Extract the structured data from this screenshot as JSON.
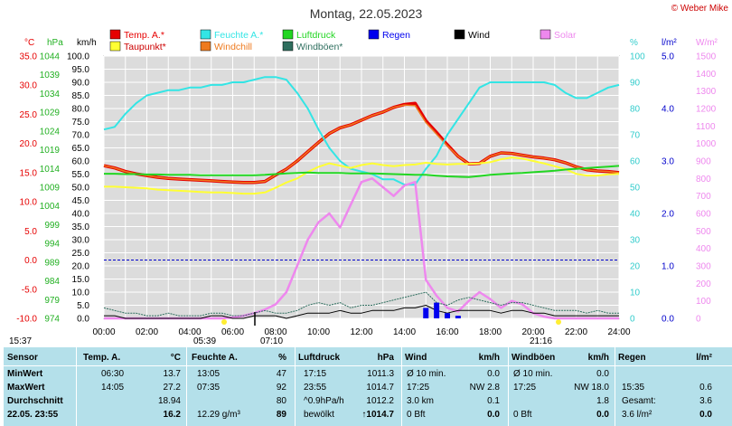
{
  "header": {
    "title": "Montag, 22.05.2023",
    "copyright": "© Weber Mike"
  },
  "legend": [
    {
      "label": "Temp. A.*",
      "color": "#e60000",
      "col": 0,
      "row": 0
    },
    {
      "label": "Feuchte A.*",
      "color": "#33e5e5",
      "col": 1,
      "row": 0
    },
    {
      "label": "Luftdruck",
      "color": "#22d622",
      "col": 2,
      "row": 0
    },
    {
      "label": "Regen",
      "color": "#0000ee",
      "col": 3,
      "row": 0
    },
    {
      "label": "Wind",
      "color": "#000000",
      "col": 4,
      "row": 0
    },
    {
      "label": "Solar",
      "color": "#ee88ee",
      "col": 5,
      "row": 0
    },
    {
      "label": "Taupunkt*",
      "color": "#ffff33",
      "col": 0,
      "row": 1
    },
    {
      "label": "Windchill",
      "color": "#ee7a1e",
      "col": 1,
      "row": 1
    },
    {
      "label": "Windböen*",
      "color": "#2e6e5e",
      "col": 2,
      "row": 1
    }
  ],
  "chart_data": {
    "type": "line",
    "x": [
      "00:00",
      "00:30",
      "01:00",
      "01:30",
      "02:00",
      "02:30",
      "03:00",
      "03:30",
      "04:00",
      "04:30",
      "05:00",
      "05:30",
      "06:00",
      "06:30",
      "07:00",
      "07:30",
      "08:00",
      "08:30",
      "09:00",
      "09:30",
      "10:00",
      "10:30",
      "11:00",
      "11:30",
      "12:00",
      "12:30",
      "13:00",
      "13:30",
      "14:00",
      "14:30",
      "15:00",
      "15:30",
      "16:00",
      "16:30",
      "17:00",
      "17:30",
      "18:00",
      "18:30",
      "19:00",
      "19:30",
      "20:00",
      "20:30",
      "21:00",
      "21:30",
      "22:00",
      "22:30",
      "23:00",
      "23:30",
      "24:00"
    ],
    "x_ticks": [
      "00:00",
      "02:00",
      "04:00",
      "06:00",
      "08:00",
      "10:00",
      "12:00",
      "14:00",
      "16:00",
      "18:00",
      "20:00",
      "22:00",
      "24:00"
    ],
    "axes": [
      {
        "unit": "°C",
        "color": "#e60000",
        "ticks": [
          "35.0",
          "30.0",
          "25.0",
          "20.0",
          "15.0",
          "10.0",
          "5.0",
          "0.0",
          "-5.0",
          "-10.0"
        ],
        "range": [
          -10,
          35
        ]
      },
      {
        "unit": "hPa",
        "color": "#22b022",
        "ticks": [
          "1044",
          "1039",
          "1034",
          "1029",
          "1024",
          "1019",
          "1014",
          "1009",
          "1004",
          "999",
          "994",
          "989",
          "984",
          "979",
          "974"
        ],
        "range": [
          974,
          1044
        ]
      },
      {
        "unit": "km/h",
        "color": "#000000",
        "ticks": [
          "100.0",
          "95.0",
          "90.0",
          "85.0",
          "80.0",
          "75.0",
          "70.0",
          "65.0",
          "60.0",
          "55.0",
          "50.0",
          "45.0",
          "40.0",
          "35.0",
          "30.0",
          "25.0",
          "20.0",
          "15.0",
          "10.0",
          "5.0",
          "0.0"
        ],
        "range": [
          0,
          100
        ]
      },
      {
        "unit": "%",
        "color": "#33cccc",
        "ticks": [
          "100",
          "90",
          "80",
          "70",
          "60",
          "50",
          "40",
          "30",
          "20",
          "10",
          "0"
        ],
        "range": [
          0,
          100
        ]
      },
      {
        "unit": "l/m²",
        "color": "#0000cc",
        "ticks": [
          "5.0",
          "4.0",
          "3.0",
          "2.0",
          "1.0",
          "0.0"
        ],
        "range": [
          0,
          5
        ]
      },
      {
        "unit": "W/m²",
        "color": "#ee88ee",
        "ticks": [
          "1500",
          "1400",
          "1300",
          "1200",
          "1100",
          "1000",
          "900",
          "800",
          "700",
          "600",
          "500",
          "400",
          "300",
          "200",
          "100",
          "0"
        ],
        "range": [
          0,
          1500
        ]
      }
    ],
    "series": [
      {
        "name": "Temp. A.*",
        "axis": 0,
        "color": "#e60000",
        "values": [
          16.2,
          15.8,
          15.2,
          14.8,
          14.5,
          14.2,
          14.0,
          13.9,
          13.8,
          13.7,
          13.6,
          13.5,
          13.4,
          13.3,
          13.3,
          13.5,
          14.6,
          15.6,
          17.0,
          18.6,
          20.2,
          21.7,
          22.7,
          23.2,
          24.0,
          24.8,
          25.4,
          26.2,
          26.7,
          26.9,
          23.9,
          21.9,
          19.8,
          17.8,
          16.5,
          16.6,
          17.8,
          18.4,
          18.3,
          18.0,
          17.7,
          17.5,
          17.2,
          16.7,
          16.0,
          15.5,
          15.3,
          15.2,
          15.0
        ]
      },
      {
        "name": "Windchill",
        "axis": 0,
        "color": "#ee7a1e",
        "values": [
          16.2,
          15.8,
          15.2,
          14.8,
          14.5,
          14.2,
          14.0,
          13.9,
          13.8,
          13.7,
          13.6,
          13.5,
          13.4,
          13.3,
          13.3,
          13.5,
          14.6,
          15.6,
          17.0,
          18.6,
          20.2,
          21.7,
          22.7,
          23.2,
          24.0,
          24.8,
          25.4,
          26.2,
          26.6,
          26.5,
          23.6,
          21.6,
          19.6,
          17.8,
          16.5,
          16.6,
          17.8,
          18.4,
          18.3,
          18.0,
          17.7,
          17.5,
          17.2,
          16.7,
          16.0,
          15.5,
          15.3,
          15.2,
          15.0
        ]
      },
      {
        "name": "Feuchte A.*",
        "axis": 3,
        "color": "#33e5e5",
        "values": [
          72,
          73,
          78,
          82,
          85,
          86,
          87,
          87,
          88,
          88,
          89,
          89,
          90,
          90,
          91,
          92,
          92,
          91,
          86,
          80,
          72,
          65,
          60,
          57,
          56,
          55,
          53,
          53,
          51,
          51,
          57,
          62,
          70,
          76,
          82,
          88,
          90,
          90,
          90,
          90,
          90,
          90,
          89,
          86,
          84,
          84,
          86,
          88,
          89
        ]
      },
      {
        "name": "Taupunkt*",
        "axis": 0,
        "color": "#ffff33",
        "values": [
          12.6,
          12.6,
          12.5,
          12.4,
          12.3,
          12.1,
          12.0,
          11.9,
          11.8,
          11.7,
          11.6,
          11.6,
          11.5,
          11.4,
          11.4,
          11.6,
          12.4,
          13.3,
          14.0,
          15.1,
          16.0,
          16.6,
          16.2,
          15.8,
          16.3,
          16.6,
          16.3,
          16.1,
          16.3,
          16.4,
          16.7,
          16.5,
          16.4,
          16.5,
          16.5,
          16.6,
          16.8,
          17.3,
          17.6,
          17.4,
          17.0,
          16.6,
          16.1,
          15.6,
          14.8,
          14.5,
          14.5,
          14.7,
          14.8
        ]
      },
      {
        "name": "Luftdruck",
        "axis": 1,
        "color": "#22d622",
        "values": [
          1012.6,
          1012.6,
          1012.5,
          1012.5,
          1012.4,
          1012.4,
          1012.3,
          1012.3,
          1012.3,
          1012.2,
          1012.2,
          1012.2,
          1012.2,
          1012.2,
          1012.2,
          1012.3,
          1012.5,
          1012.7,
          1012.8,
          1012.9,
          1012.8,
          1012.8,
          1012.8,
          1012.7,
          1012.7,
          1012.7,
          1012.6,
          1012.5,
          1012.4,
          1012.3,
          1012.3,
          1012.1,
          1011.9,
          1011.8,
          1011.7,
          1012.0,
          1012.3,
          1012.5,
          1012.7,
          1012.8,
          1013.0,
          1013.2,
          1013.4,
          1013.7,
          1013.9,
          1014.1,
          1014.3,
          1014.5,
          1014.7
        ]
      },
      {
        "name": "Solar",
        "axis": 5,
        "color": "#ee88ee",
        "values": [
          0,
          0,
          0,
          0,
          0,
          0,
          0,
          0,
          0,
          0,
          0,
          0,
          5,
          15,
          30,
          50,
          80,
          150,
          300,
          450,
          550,
          600,
          520,
          650,
          780,
          800,
          750,
          700,
          760,
          780,
          220,
          130,
          60,
          40,
          100,
          150,
          110,
          60,
          100,
          80,
          30,
          10,
          0,
          0,
          0,
          0,
          0,
          0,
          0
        ]
      },
      {
        "name": "Windböen*",
        "axis": 2,
        "color": "#2e6e5e",
        "values": [
          4,
          3,
          2,
          2,
          1,
          1,
          2,
          1,
          1,
          1,
          2,
          2,
          1,
          1,
          2,
          3,
          2,
          2,
          3,
          5,
          6,
          5,
          6,
          4,
          5,
          5,
          6,
          7,
          8,
          9,
          10,
          6,
          5,
          7,
          8,
          7,
          6,
          5,
          6,
          6,
          5,
          4,
          3,
          3,
          3,
          2,
          3,
          2,
          2
        ]
      },
      {
        "name": "Wind",
        "axis": 2,
        "color": "#000000",
        "values": [
          1,
          1,
          0,
          0,
          0,
          0,
          0,
          0,
          0,
          0,
          1,
          1,
          0,
          0,
          1,
          1,
          1,
          0,
          1,
          2,
          2,
          2,
          3,
          2,
          2,
          3,
          3,
          3,
          4,
          4,
          5,
          3,
          2,
          3,
          3,
          3,
          3,
          2,
          3,
          3,
          2,
          2,
          1,
          1,
          1,
          1,
          1,
          1,
          1
        ]
      },
      {
        "name": "Regen",
        "axis": 4,
        "color": "#0000ee",
        "values": [
          0,
          0,
          0,
          0,
          0,
          0,
          0,
          0,
          0,
          0,
          0,
          0,
          0,
          0,
          0,
          0,
          0,
          0,
          0,
          0,
          0,
          0,
          0,
          0,
          0,
          0,
          0,
          0,
          0,
          0,
          0.2,
          0.3,
          0.1,
          0.05,
          0,
          0,
          0,
          0,
          0,
          0,
          0,
          0,
          0,
          0,
          0,
          0,
          0,
          0,
          0
        ]
      }
    ],
    "reference_line_temp": 0.0,
    "grid": true
  },
  "timebar": {
    "sunrise_left": "15:37",
    "sunrise": "05:39",
    "moonrise": "07:10",
    "sunset": "21:16"
  },
  "stats": {
    "headers": [
      "Sensor",
      "Temp. A.",
      "°C",
      "Feuchte A.",
      "%",
      "Luftdruck",
      "hPa",
      "Wind",
      "km/h",
      "Windböen",
      "km/h",
      "Regen",
      "l/m²"
    ],
    "rows": [
      {
        "label": "MinWert",
        "cells": [
          "06:30",
          "13.7",
          "13:05",
          "47",
          "17:15",
          "1011.3",
          "Ø 10 min.",
          "0.0",
          "Ø 10 min.",
          "0.0",
          "",
          ""
        ]
      },
      {
        "label": "MaxWert",
        "cells": [
          "14:05",
          "27.2",
          "07:35",
          "92",
          "23:55",
          "1014.7",
          "17:25",
          "NW 2.8",
          "17:25",
          "NW 18.0",
          "15:35",
          "0.6"
        ]
      },
      {
        "label": "Durchschnitt",
        "cells": [
          "",
          "18.94",
          "",
          "80",
          "^0.9hPa/h",
          "1012.2",
          "3.0 km",
          "0.1",
          "",
          "1.8",
          "Gesamt:",
          "3.6"
        ]
      },
      {
        "label": "22.05. 23:55",
        "cells": [
          "",
          "16.2",
          "12.29 g/m³",
          "89",
          "bewölkt",
          "↑1014.7",
          "0 Bft",
          "0.0",
          "0 Bft",
          "0.0",
          "3.6 l/m²",
          "0.0"
        ]
      }
    ]
  }
}
